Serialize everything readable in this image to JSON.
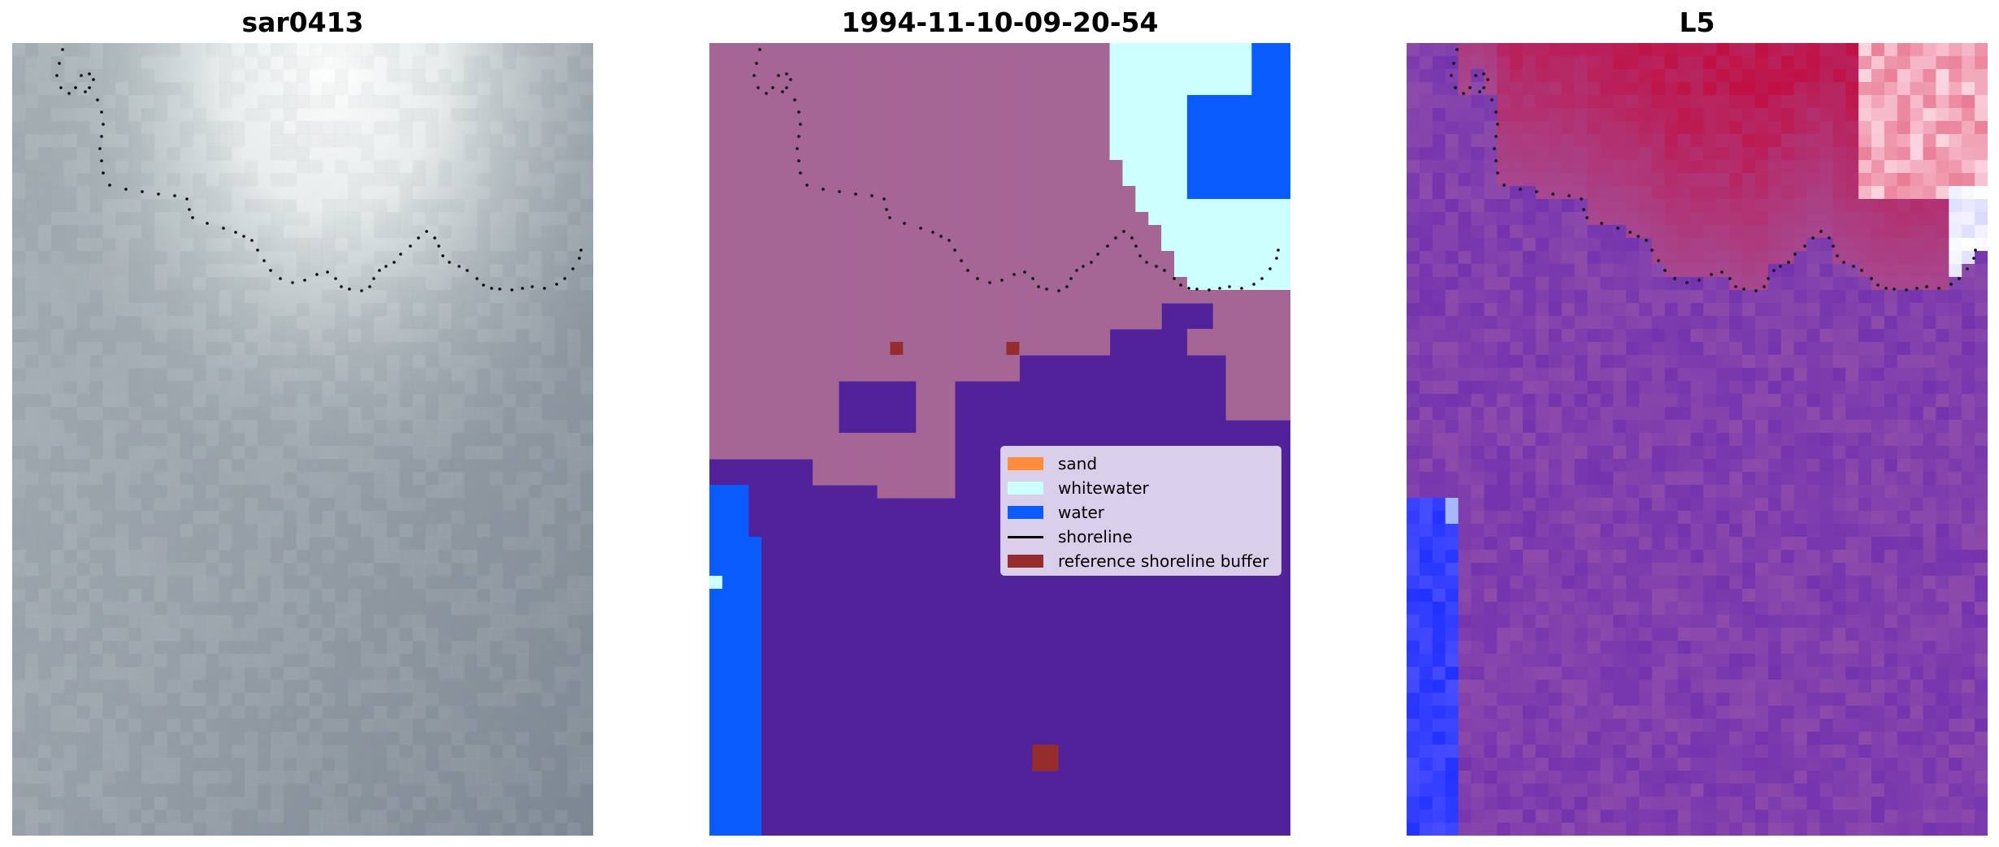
{
  "figure": {
    "panels": [
      {
        "title": "sar0413",
        "type": "image"
      },
      {
        "title": "1994-11-10-09-20-54",
        "type": "classification"
      },
      {
        "title": "L5",
        "type": "index-map"
      }
    ]
  },
  "legend": {
    "items": [
      {
        "label": "sand",
        "color": "#ff8c3a",
        "kind": "patch"
      },
      {
        "label": "whitewater",
        "color": "#ccffff",
        "kind": "patch"
      },
      {
        "label": "water",
        "color": "#0a5cff",
        "kind": "patch"
      },
      {
        "label": "shoreline",
        "color": "#000000",
        "kind": "line"
      },
      {
        "label": "reference shoreline buffer",
        "color": "#962d2d",
        "kind": "patch"
      }
    ]
  },
  "colors": {
    "land": "#a56595",
    "deep": "#51229a",
    "water": "#0a5cff",
    "whitewater": "#ccffff",
    "buffer": "#962d2d",
    "rgb_base": "#9aa4ab",
    "l5_base": "#8a4aa0",
    "l5_high": "#c40a3a",
    "l5_low": "#1a2cff"
  },
  "shoreline_style": "dotted black"
}
